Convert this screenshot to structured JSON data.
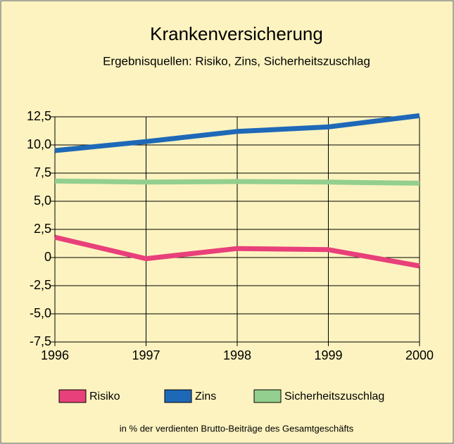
{
  "chart_data": {
    "type": "line",
    "title": "Krankenversicherung",
    "subtitle": "Ergebnisquellen: Risiko, Zins, Sicherheitszuschlag",
    "footnote": "in % der verdienten Brutto-Beiträge des Gesamtgeschäfts",
    "x": [
      1996,
      1997,
      1998,
      1999,
      2000
    ],
    "xlim": [
      1996,
      2000
    ],
    "ylim": [
      -7.5,
      12.5
    ],
    "yticks": [
      {
        "value": 12.5,
        "label": "12,5"
      },
      {
        "value": 10,
        "label": "10,0"
      },
      {
        "value": 7.5,
        "label": "7,5"
      },
      {
        "value": 5,
        "label": "5,0"
      },
      {
        "value": 2.5,
        "label": "2,5"
      },
      0,
      {
        "value": -2.5,
        "label": "-2,5"
      },
      {
        "value": -5,
        "label": "-5,0"
      },
      {
        "value": -7.5,
        "label": "-7,5"
      }
    ],
    "grid": true,
    "series": [
      {
        "name": "Risiko",
        "color": "#e8407a",
        "values": [
          1.8,
          -0.1,
          0.8,
          0.7,
          -0.75
        ]
      },
      {
        "name": "Zins",
        "color": "#1e68b8",
        "values": [
          9.5,
          10.3,
          11.2,
          11.6,
          12.6
        ]
      },
      {
        "name": "Sicherheitszuschlag",
        "color": "#93cf8e",
        "values": [
          6.8,
          6.7,
          6.75,
          6.7,
          6.6
        ]
      }
    ]
  }
}
